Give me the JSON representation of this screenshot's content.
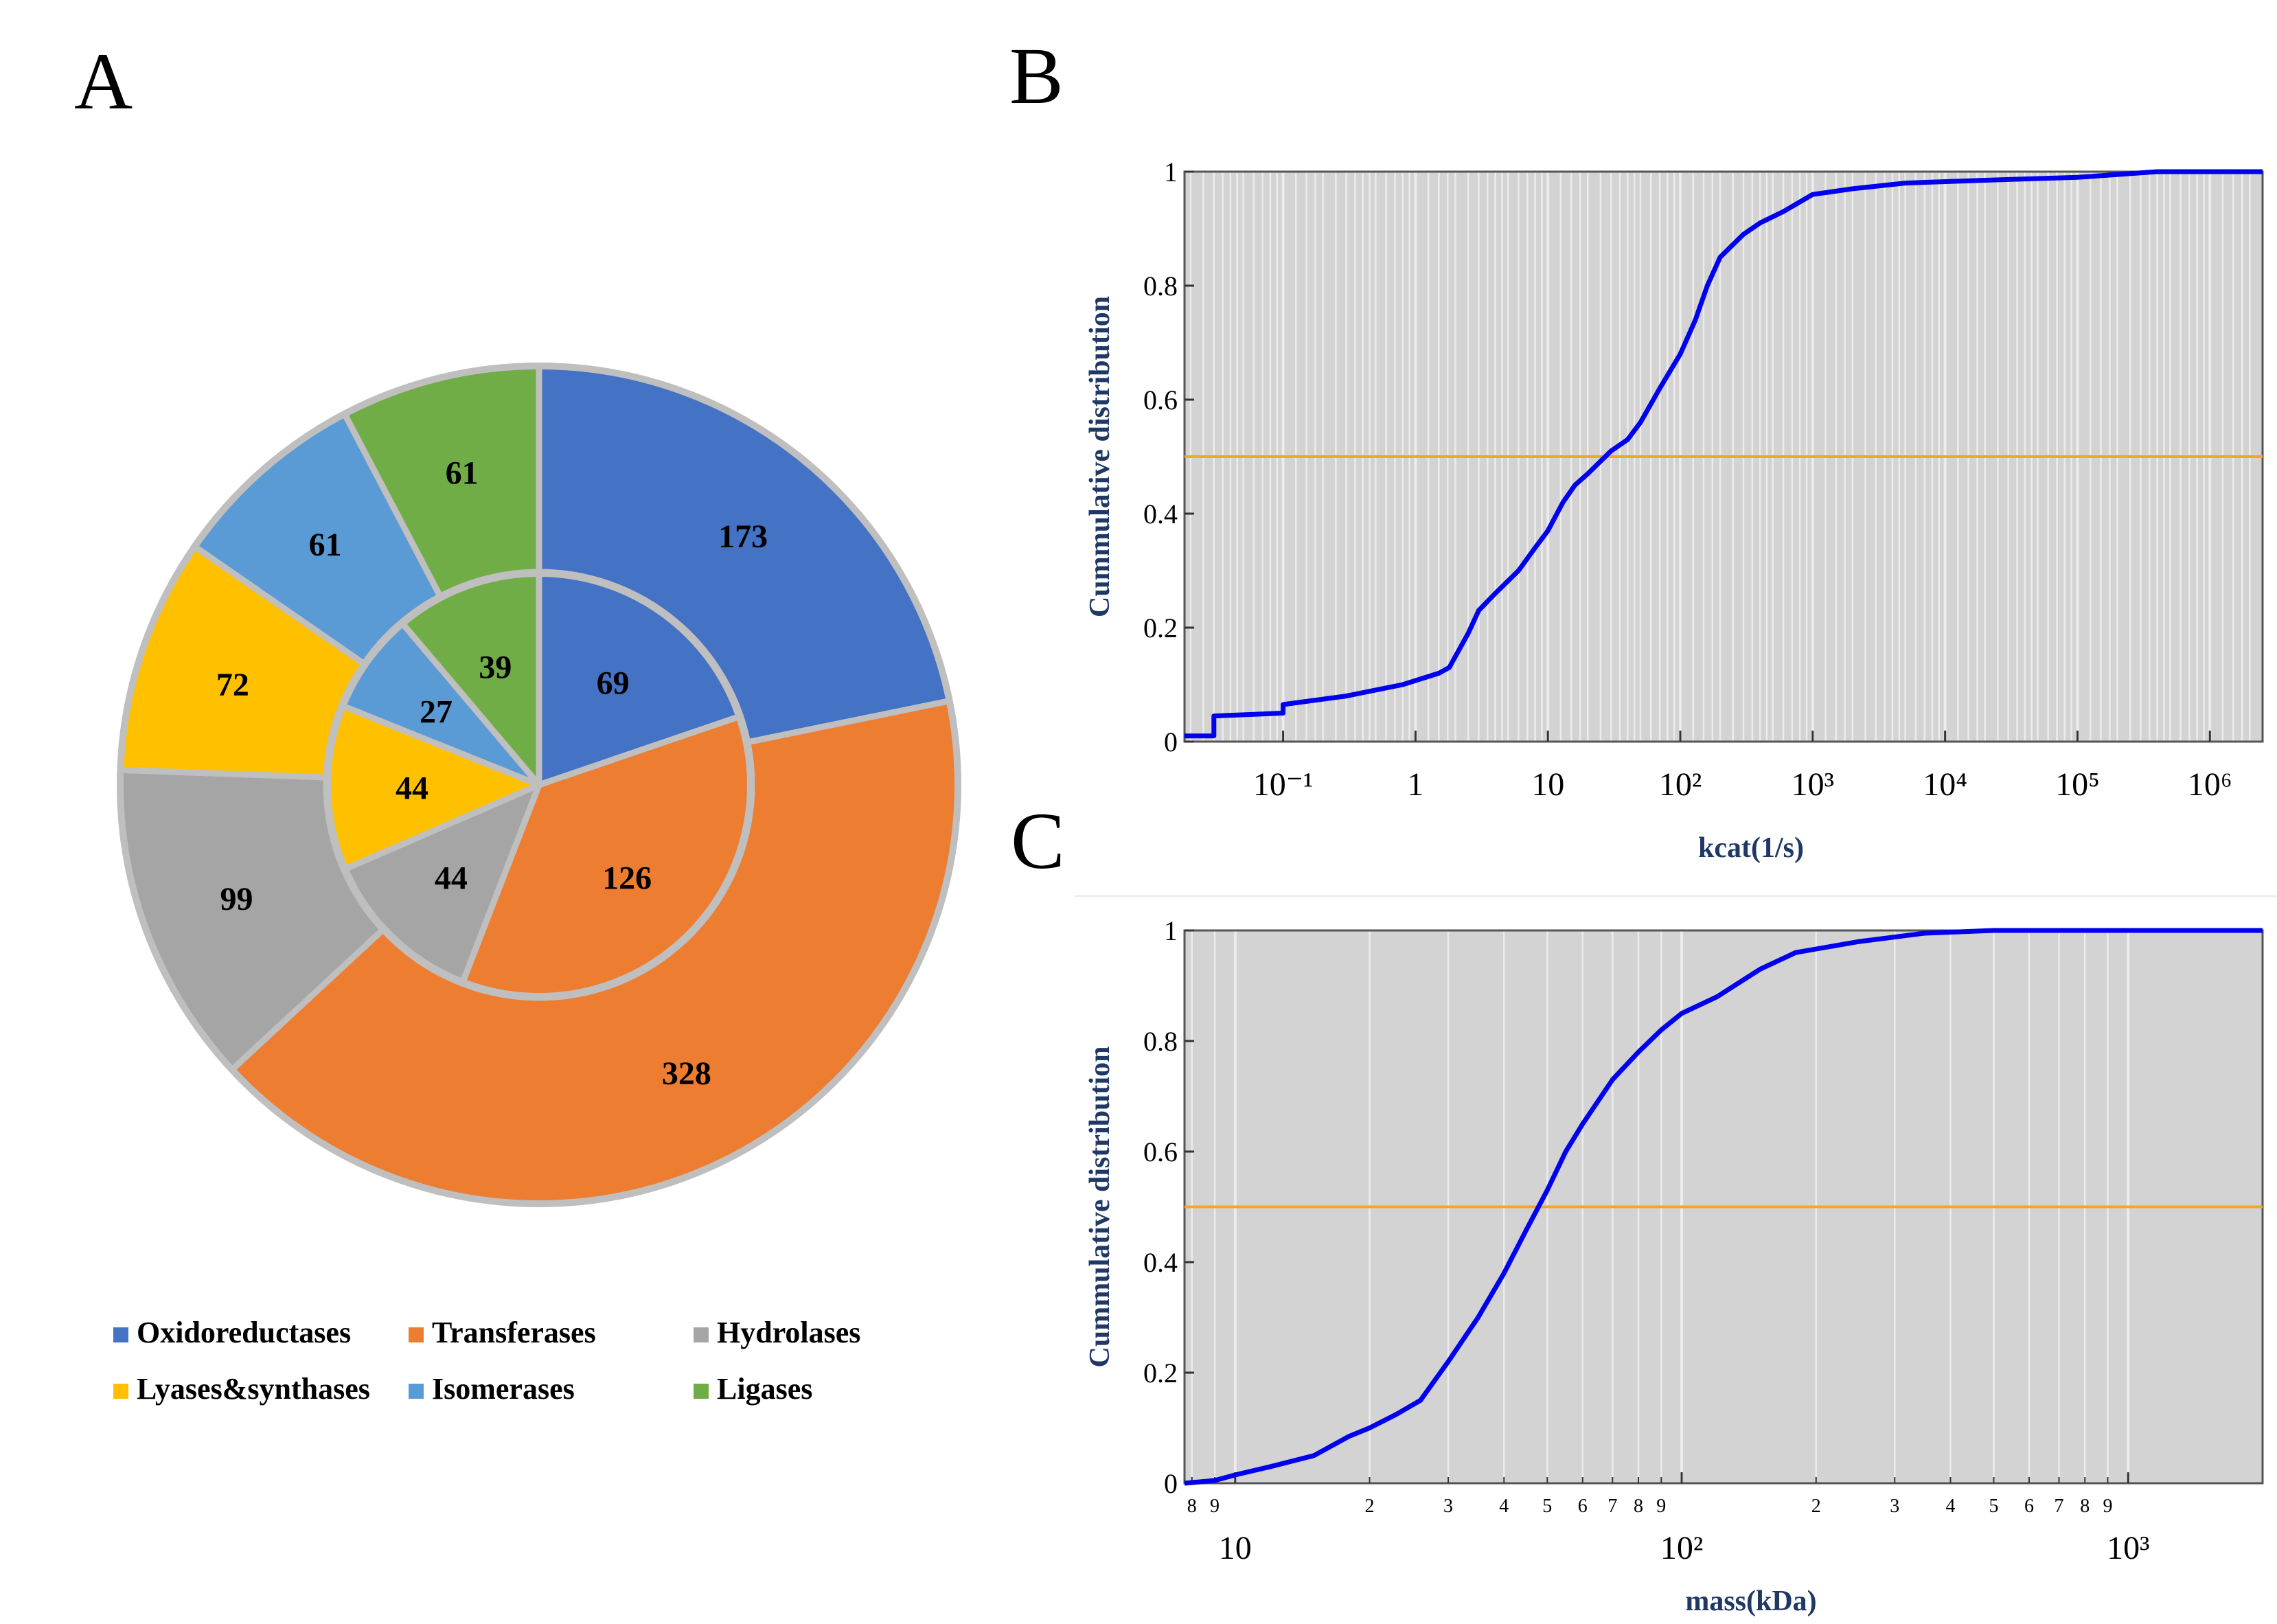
{
  "panels": {
    "a": "A",
    "b": "B",
    "c": "C"
  },
  "colors": {
    "oxidoreductases": "#4472C4",
    "transferases": "#ED7D31",
    "hydrolases": "#A5A5A5",
    "lyases": "#FFC000",
    "isomerases": "#5B9BD5",
    "ligases": "#70AD47",
    "ring_stroke": "#BFBFBF",
    "plot_bg": "#D3D3D3",
    "grid": "#ECECEC",
    "curve": "#0000EE",
    "median": "#F5A623",
    "axis_label": "#1F3864"
  },
  "chart_data": [
    {
      "type": "pie",
      "subtype": "nested-donut",
      "legend_position": "bottom",
      "legend": [
        "Oxidoreductases",
        "Transferases",
        "Hydrolases",
        "Lyases&synthases",
        "Isomerases",
        "Ligases"
      ],
      "inner_ring": {
        "labels": [
          "Oxidoreductases",
          "Transferases",
          "Hydrolases",
          "Lyases&synthases",
          "Isomerases",
          "Ligases"
        ],
        "values": [
          69,
          126,
          44,
          44,
          27,
          39
        ]
      },
      "outer_ring": {
        "labels": [
          "Oxidoreductases",
          "Transferases",
          "Hydrolases",
          "Lyases&synthases",
          "Isomerases",
          "Ligases"
        ],
        "values": [
          173,
          328,
          99,
          72,
          61,
          61
        ]
      }
    },
    {
      "type": "line",
      "panel": "B",
      "xlabel": "kcat(1/s)",
      "ylabel": "Cummulative distribution",
      "x_scale": "log",
      "xlim": [
        0.018,
        2500000
      ],
      "ylim": [
        0,
        1
      ],
      "x_tick_labels": [
        "10⁻¹",
        "1",
        "10",
        "10²",
        "10³",
        "10⁴",
        "10⁵",
        "10⁶"
      ],
      "x_tick_values": [
        0.1,
        1,
        10,
        100,
        1000,
        10000,
        100000,
        1000000
      ],
      "y_tick_labels": [
        "0",
        "0.2",
        "0.4",
        "0.6",
        "0.8",
        "1"
      ],
      "y_tick_values": [
        0,
        0.2,
        0.4,
        0.6,
        0.8,
        1
      ],
      "grid": true,
      "reference_line_y": 0.5,
      "series": [
        {
          "x": [
            0.018,
            0.03,
            0.03,
            0.1,
            0.1,
            0.3,
            0.8,
            1.5,
            1.8,
            2.5,
            3,
            4,
            6,
            8,
            10,
            13,
            16,
            20,
            30,
            40,
            50,
            70,
            100,
            130,
            160,
            200,
            300,
            400,
            600,
            1000,
            2000,
            5000,
            20000,
            100000,
            400000,
            2500000
          ],
          "y": [
            0.01,
            0.01,
            0.045,
            0.05,
            0.065,
            0.08,
            0.1,
            0.12,
            0.13,
            0.19,
            0.23,
            0.26,
            0.3,
            0.34,
            0.37,
            0.42,
            0.45,
            0.47,
            0.51,
            0.53,
            0.56,
            0.62,
            0.68,
            0.74,
            0.8,
            0.85,
            0.89,
            0.91,
            0.93,
            0.96,
            0.97,
            0.98,
            0.985,
            0.99,
            1.0,
            1.0
          ]
        }
      ]
    },
    {
      "type": "line",
      "panel": "C",
      "xlabel": "mass(kDa)",
      "ylabel": "Cummulative distribution",
      "x_scale": "log",
      "xlim": [
        7.7,
        2000
      ],
      "ylim": [
        0,
        1
      ],
      "x_major_tick_labels": [
        "10",
        "10²",
        "10³"
      ],
      "x_major_tick_values": [
        10,
        100,
        1000
      ],
      "x_minor_tick_labels": [
        "8",
        "9",
        "2",
        "3",
        "4",
        "5",
        "6",
        "7",
        "8",
        "9",
        "2",
        "3",
        "4",
        "5",
        "6",
        "7",
        "8",
        "9"
      ],
      "x_minor_tick_values": [
        8,
        9,
        20,
        30,
        40,
        50,
        60,
        70,
        80,
        90,
        200,
        300,
        400,
        500,
        600,
        700,
        800,
        900
      ],
      "y_tick_labels": [
        "0",
        "0.2",
        "0.4",
        "0.6",
        "0.8",
        "1"
      ],
      "y_tick_values": [
        0,
        0.2,
        0.4,
        0.6,
        0.8,
        1
      ],
      "grid": true,
      "reference_line_y": 0.5,
      "series": [
        {
          "x": [
            7.7,
            9,
            10,
            12,
            15,
            18,
            20,
            23,
            26,
            30,
            35,
            40,
            45,
            50,
            55,
            60,
            70,
            80,
            90,
            100,
            120,
            150,
            180,
            250,
            350,
            500,
            1000,
            2000
          ],
          "y": [
            0.0,
            0.005,
            0.015,
            0.03,
            0.05,
            0.085,
            0.1,
            0.125,
            0.15,
            0.22,
            0.3,
            0.38,
            0.46,
            0.53,
            0.6,
            0.65,
            0.73,
            0.78,
            0.82,
            0.85,
            0.88,
            0.93,
            0.96,
            0.98,
            0.995,
            1.0,
            1.0,
            1.0
          ]
        }
      ]
    }
  ]
}
